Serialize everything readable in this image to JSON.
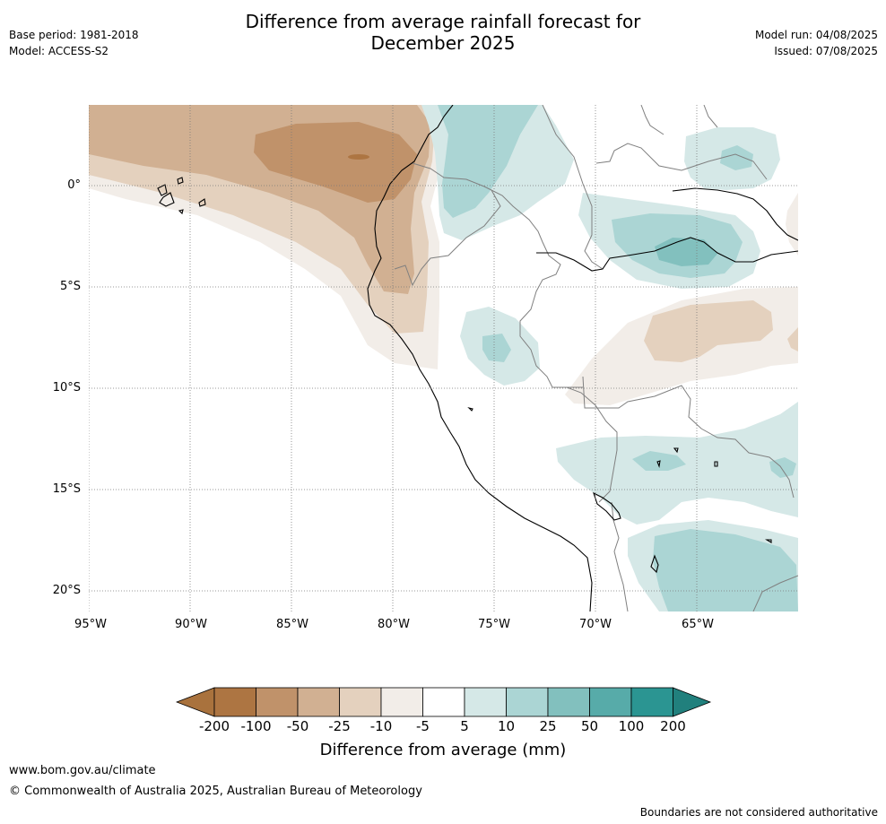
{
  "header": {
    "title_line1": "Difference from average rainfall forecast for",
    "title_line2": "December 2025",
    "base_period": "Base period: 1981-2018",
    "model": "Model: ACCESS-S2",
    "model_run": "Model run: 04/08/2025",
    "issued": "Issued: 07/08/2025"
  },
  "map": {
    "lat_labels": [
      "0°",
      "5°S",
      "10°S",
      "15°S",
      "20°S"
    ],
    "lon_labels": [
      "95°W",
      "90°W",
      "85°W",
      "80°W",
      "75°W",
      "70°W",
      "65°W"
    ]
  },
  "colorbar": {
    "title": "Difference from average (mm)",
    "labels": [
      "-200",
      "-100",
      "-50",
      "-25",
      "-10",
      "-5",
      "5",
      "10",
      "25",
      "50",
      "100",
      "200"
    ],
    "colors": [
      "#a9723d",
      "#ad7542",
      "#c0926a",
      "#d1b092",
      "#e4d1be",
      "#f2ede8",
      "#ffffff",
      "#d5e8e7",
      "#abd5d4",
      "#82c0be",
      "#57aba9",
      "#2b9592",
      "#21807d"
    ]
  },
  "footer": {
    "website": "www.bom.gov.au/climate",
    "copyright": "© Commonwealth of Australia 2025, Australian Bureau of Meteorology",
    "disclaimer": "Boundaries are not considered authoritative"
  }
}
